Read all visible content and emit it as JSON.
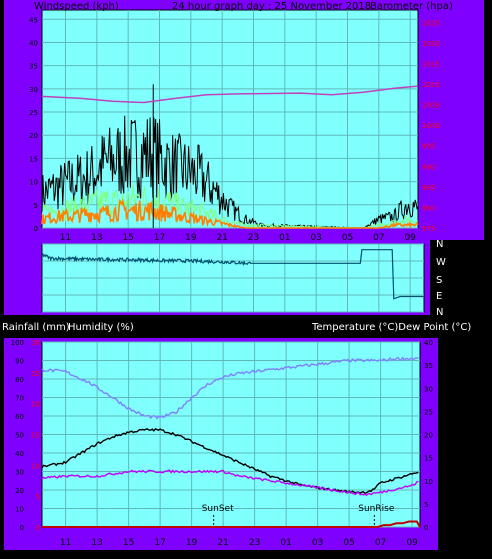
{
  "colors": {
    "background": "#000000",
    "gutter": "#8000ff",
    "plot_bg": "#80ffff",
    "grid": "#5fb8b8",
    "axis_text": "#000000",
    "red_axis": "#ff0000",
    "wind_gust": "#000000",
    "wind_avg_light": "#80ff80",
    "wind_avg": "#ff8000",
    "barometer": "#c040c0",
    "direction": "#005070",
    "temperature": "#000000",
    "humidity": "#8080ff",
    "dew_point": "#c000ff",
    "rain": "#c00000"
  },
  "top": {
    "left_title": "Windspeed (kph)",
    "center_title": "24 hour graph day : 25 November 2018",
    "right_title": "Barometer (hpa)"
  },
  "compass": [
    "N",
    "W",
    "S",
    "E",
    "N"
  ],
  "bottom": {
    "left_title_1": "Rainfall (mm)",
    "left_title_2": "Humidity (%)",
    "right_title": "Temperature (°C)Dew Point (°C)",
    "sunset_label": "SunSet",
    "sunrise_label": "SunRise"
  },
  "chart_data": [
    {
      "type": "line",
      "name": "wind-barometer",
      "x_ticks": [
        "11",
        "13",
        "15",
        "17",
        "19",
        "21",
        "23",
        "01",
        "03",
        "05",
        "07",
        "09"
      ],
      "y_left_ticks": [
        "0",
        "5",
        "10",
        "15",
        "20",
        "25",
        "30",
        "35",
        "40",
        "45"
      ],
      "y_right_ticks": [
        "975",
        "980",
        "985",
        "990",
        "995",
        "1000",
        "1005",
        "1010",
        "1015",
        "1020",
        "1025"
      ],
      "ylim_left": [
        0,
        47
      ],
      "ylim_right": [
        975,
        1028
      ],
      "x_hours": [
        9.5,
        33.5
      ],
      "series": [
        {
          "key": "barometer",
          "axis": "right",
          "x": [
            9.5,
            12,
            14,
            16,
            18,
            20,
            22,
            24,
            26,
            28,
            30,
            32,
            33.5
          ],
          "y": [
            1007,
            1006.5,
            1005.8,
            1005.5,
            1006.5,
            1007.4,
            1007.6,
            1007.7,
            1007.8,
            1007.4,
            1008,
            1009,
            1009.5
          ]
        },
        {
          "key": "gust",
          "axis": "left",
          "envelope": true,
          "x": [
            9.5,
            10.5,
            11.5,
            12.5,
            13.5,
            14.5,
            15.5,
            16.5,
            17.5,
            18.5,
            19.5,
            20.5,
            21.5,
            22.5,
            23.5,
            30,
            31,
            32,
            33,
            33.5
          ],
          "y": [
            12,
            14,
            16,
            18,
            22,
            24,
            25,
            26,
            22,
            20,
            18,
            13,
            7,
            3,
            1,
            0,
            3,
            4,
            9,
            6
          ]
        },
        {
          "key": "avg_light",
          "axis": "left",
          "envelope": true,
          "x": [
            9.5,
            10.5,
            11.5,
            12.5,
            13.5,
            14.5,
            15.5,
            16.5,
            17.5,
            18.5,
            19.5,
            20.5,
            21.5,
            22.5,
            30,
            31,
            32,
            33,
            33.5
          ],
          "y": [
            5,
            6,
            7,
            8,
            9,
            9,
            10,
            10,
            9,
            7,
            6,
            4,
            2,
            1,
            0,
            1,
            2,
            3,
            2
          ]
        },
        {
          "key": "avg",
          "axis": "left",
          "envelope": true,
          "x": [
            9.5,
            10.5,
            11.5,
            12.5,
            13.5,
            14.5,
            15.5,
            16.5,
            17.5,
            18.5,
            19.5,
            20.5,
            21.5,
            22.5,
            30,
            31,
            32,
            33,
            33.5
          ],
          "y": [
            3,
            4,
            4,
            5,
            5,
            6,
            6,
            6,
            5,
            4,
            3,
            2,
            1,
            0,
            0,
            0,
            1,
            1,
            1
          ]
        }
      ]
    },
    {
      "type": "line",
      "name": "wind-direction",
      "ylim": [
        0,
        360
      ],
      "x_hours": [
        9.5,
        33.5
      ],
      "series": [
        {
          "key": "direction",
          "x": [
            9.5,
            10,
            11,
            12,
            13,
            14,
            15,
            16,
            17,
            18,
            19,
            20,
            21,
            22,
            22.5,
            23,
            26,
            28,
            29.5,
            29.6,
            31.5,
            31.6,
            32,
            33.5
          ],
          "y": [
            305,
            285,
            282,
            280,
            278,
            278,
            276,
            275,
            272,
            272,
            270,
            268,
            265,
            260,
            258,
            258,
            258,
            258,
            258,
            330,
            330,
            70,
            82,
            82
          ]
        }
      ]
    },
    {
      "type": "line",
      "name": "temperature-humidity-rain",
      "x_ticks": [
        "11",
        "13",
        "15",
        "17",
        "19",
        "21",
        "23",
        "01",
        "03",
        "05",
        "07",
        "09"
      ],
      "y_left_ticks": [
        "0",
        "10",
        "20",
        "30",
        "40",
        "50",
        "60",
        "70",
        "80",
        "90",
        "100"
      ],
      "y_red_ticks": [
        "0",
        "5",
        "10",
        "15",
        "20",
        "25",
        "30"
      ],
      "y_right_ticks": [
        "0",
        "5",
        "10",
        "15",
        "20",
        "25",
        "30",
        "35",
        "40"
      ],
      "ylim_left": [
        0,
        100
      ],
      "ylim_right": [
        0,
        40
      ],
      "x_hours": [
        9.5,
        33.5
      ],
      "series": [
        {
          "key": "humidity",
          "axis": "left",
          "x": [
            9.5,
            11,
            12.5,
            14,
            15,
            16,
            17,
            18,
            19,
            20,
            21,
            22,
            23,
            24,
            25,
            26,
            27,
            28,
            29,
            30,
            31,
            32,
            33,
            33.5
          ],
          "y": [
            85,
            84,
            78,
            70,
            64,
            60,
            59,
            62,
            70,
            77,
            81,
            83,
            84,
            85,
            86,
            87,
            88,
            89,
            90,
            90,
            90,
            91,
            91,
            91
          ]
        },
        {
          "key": "temperature",
          "axis": "right",
          "x": [
            9.5,
            11,
            12,
            13,
            14,
            15,
            16,
            17,
            18,
            19,
            20,
            21,
            22,
            23,
            24,
            25,
            26,
            27,
            28,
            29,
            30,
            30.5,
            31,
            32,
            33,
            33.5
          ],
          "y": [
            13,
            14,
            16,
            18,
            19.5,
            20.5,
            21,
            21,
            20,
            18.5,
            17,
            15.5,
            14,
            12.5,
            11,
            10,
            9,
            8.5,
            8,
            7.6,
            7.5,
            8,
            9.5,
            10.5,
            11.5,
            12
          ]
        },
        {
          "key": "dew_point",
          "axis": "right",
          "x": [
            9.5,
            11,
            13,
            15,
            17,
            19,
            21,
            22,
            24,
            26,
            28,
            30,
            31,
            33,
            33.5
          ],
          "y": [
            10.5,
            11,
            11,
            12,
            12,
            12,
            12,
            11,
            10,
            9,
            8,
            7,
            7.5,
            9,
            10
          ]
        },
        {
          "key": "rain",
          "axis": "right",
          "x": [
            9.5,
            30.8,
            31.2,
            31.6,
            32,
            32.4,
            32.8,
            33.3,
            33.5
          ],
          "y": [
            0,
            0,
            0.4,
            0.4,
            0.8,
            0.8,
            1.2,
            1.2,
            0
          ]
        }
      ],
      "events": [
        {
          "label_key": "sunset_label",
          "hour": 20.4
        },
        {
          "label_key": "sunrise_label",
          "hour": 30.6
        }
      ]
    }
  ]
}
